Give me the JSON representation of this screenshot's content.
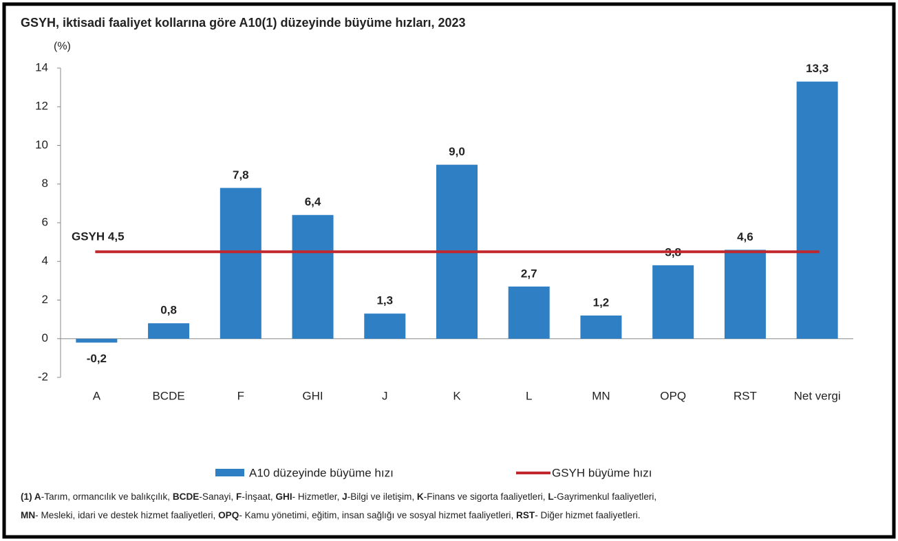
{
  "chart_data": {
    "type": "bar",
    "title": "GSYH, iktisadi faaliyet kollarına göre A10(1) düzeyinde büyüme hızları, 2023",
    "y_label": "(%)",
    "categories": [
      "A",
      "BCDE",
      "F",
      "GHI",
      "J",
      "K",
      "L",
      "MN",
      "OPQ",
      "RST",
      "Net vergi"
    ],
    "series": [
      {
        "name": "A10 düzeyinde büyüme hızı",
        "color": "#2e7fc4",
        "values": [
          -0.2,
          0.8,
          7.8,
          6.4,
          1.3,
          9.0,
          2.7,
          1.2,
          3.8,
          4.6,
          13.3
        ],
        "value_labels": [
          "-0,2",
          "0,8",
          "7,8",
          "6,4",
          "1,3",
          "9,0",
          "2,7",
          "1,2",
          "3,8",
          "4,6",
          "13,3"
        ]
      }
    ],
    "line": {
      "name": "GSYH büyüme hızı",
      "value": 4.5,
      "label": "GSYH 4,5",
      "color": "#c0282d"
    },
    "ylim": [
      -2,
      14
    ],
    "yticks": [
      -2,
      0,
      2,
      4,
      6,
      8,
      10,
      12,
      14
    ],
    "footnote": [
      [
        {
          "bold": "(1) A",
          "text": "-Tarım, ormancılık ve balıkçılık, "
        },
        {
          "bold": "BCDE",
          "text": "-Sanayi, "
        },
        {
          "bold": "F",
          "text": "-İnşaat, "
        },
        {
          "bold": "GHI",
          "text": "- Hizmetler, "
        },
        {
          "bold": "J",
          "text": "-Bilgi ve iletişim, "
        },
        {
          "bold": "K",
          "text": "-Finans ve sigorta faaliyetleri, "
        },
        {
          "bold": "L",
          "text": "-Gayrimenkul faaliyetleri,"
        }
      ],
      [
        {
          "bold": "MN",
          "text": "- Mesleki, idari ve destek hizmet faaliyetleri, "
        },
        {
          "bold": "OPQ",
          "text": "- Kamu yönetimi, eğitim, insan sağlığı ve sosyal hizmet faaliyetleri, "
        },
        {
          "bold": "RST",
          "text": "- Diğer hizmet faaliyetleri."
        }
      ]
    ]
  }
}
